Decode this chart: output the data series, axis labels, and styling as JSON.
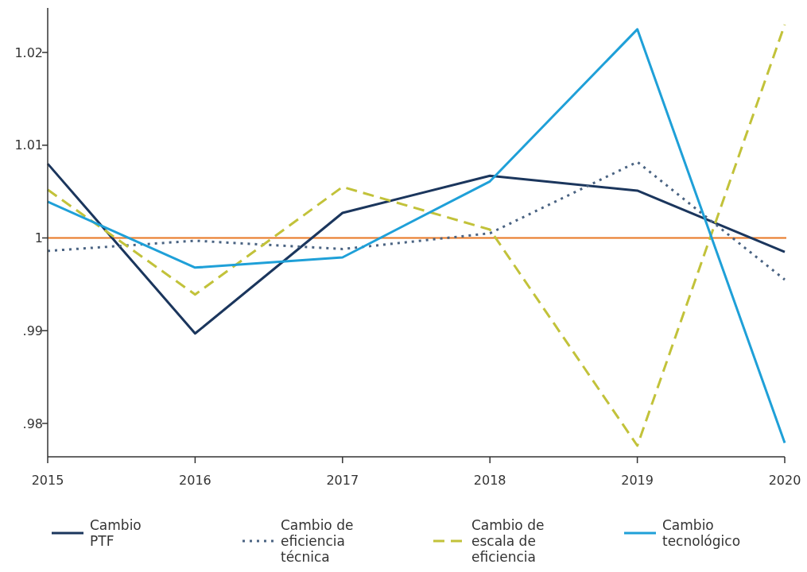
{
  "chart_data": {
    "type": "line",
    "x": [
      2015,
      2016,
      2017,
      2018,
      2019,
      2020
    ],
    "series": [
      {
        "name": "Cambio PTF",
        "color": "#1b365d",
        "line_style": "solid",
        "values": [
          1.008,
          0.9897,
          1.0027,
          1.0067,
          1.0051,
          0.9985
        ]
      },
      {
        "name": "Cambio de eficiencia técnica",
        "color": "#4a6382",
        "line_style": "dotted",
        "values": [
          0.9986,
          0.9997,
          0.9988,
          1.0005,
          1.0082,
          0.9955
        ]
      },
      {
        "name": "Cambio de escala de eficiencia",
        "color": "#c2c23a",
        "line_style": "dashed",
        "values": [
          1.0052,
          0.9939,
          1.0055,
          1.0009,
          0.9776,
          1.023
        ]
      },
      {
        "name": "Cambio tecnológico",
        "color": "#1fa0d8",
        "line_style": "solid",
        "values": [
          1.0039,
          0.9968,
          0.9979,
          1.0061,
          1.0225,
          0.9779
        ]
      }
    ],
    "xlim": [
      2015,
      2020
    ],
    "xticks": [
      2015,
      2016,
      2017,
      2018,
      2019,
      2020
    ],
    "ylim": [
      0.9764,
      1.0248
    ],
    "yticks": [
      {
        "value": 0.98,
        "label": ".98"
      },
      {
        "value": 0.99,
        "label": ".99"
      },
      1,
      1.01,
      1.02
    ],
    "ref_lines": [
      {
        "axis": "y",
        "value": 1,
        "color": "#e87722"
      }
    ],
    "grid": false,
    "legend": "bottom",
    "marker": "none"
  }
}
